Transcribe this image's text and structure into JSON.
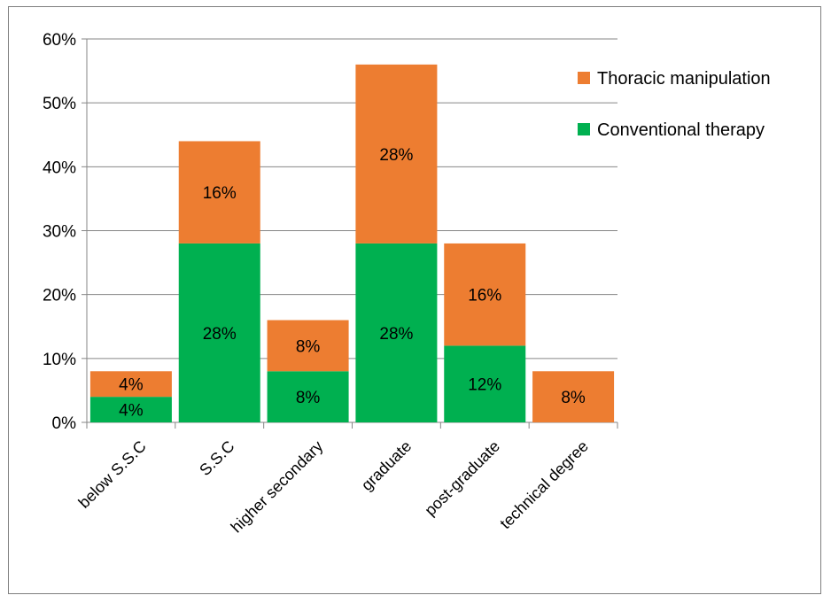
{
  "chart_data": {
    "type": "bar",
    "stacked": true,
    "categories": [
      "below S.S.C",
      "S.S.C",
      "higher secondary",
      "graduate",
      "post-graduate",
      "technical degree"
    ],
    "series": [
      {
        "name": "Conventional therapy",
        "color": "#00b050",
        "values": [
          4,
          28,
          8,
          28,
          12,
          0
        ],
        "labels": [
          "4%",
          "28%",
          "8%",
          "28%",
          "12%",
          ""
        ]
      },
      {
        "name": "Thoracic manipulation",
        "color": "#ed7d31",
        "values": [
          4,
          16,
          8,
          28,
          16,
          8
        ],
        "labels": [
          "4%",
          "16%",
          "8%",
          "28%",
          "16%",
          "8%"
        ]
      }
    ],
    "ylim": [
      0,
      60
    ],
    "yticks": [
      "0%",
      "10%",
      "20%",
      "30%",
      "40%",
      "50%",
      "60%"
    ],
    "grid": true,
    "legend_position": "right",
    "legend_order": [
      "Thoracic manipulation",
      "Conventional therapy"
    ],
    "title": "",
    "xlabel": "",
    "ylabel": ""
  }
}
